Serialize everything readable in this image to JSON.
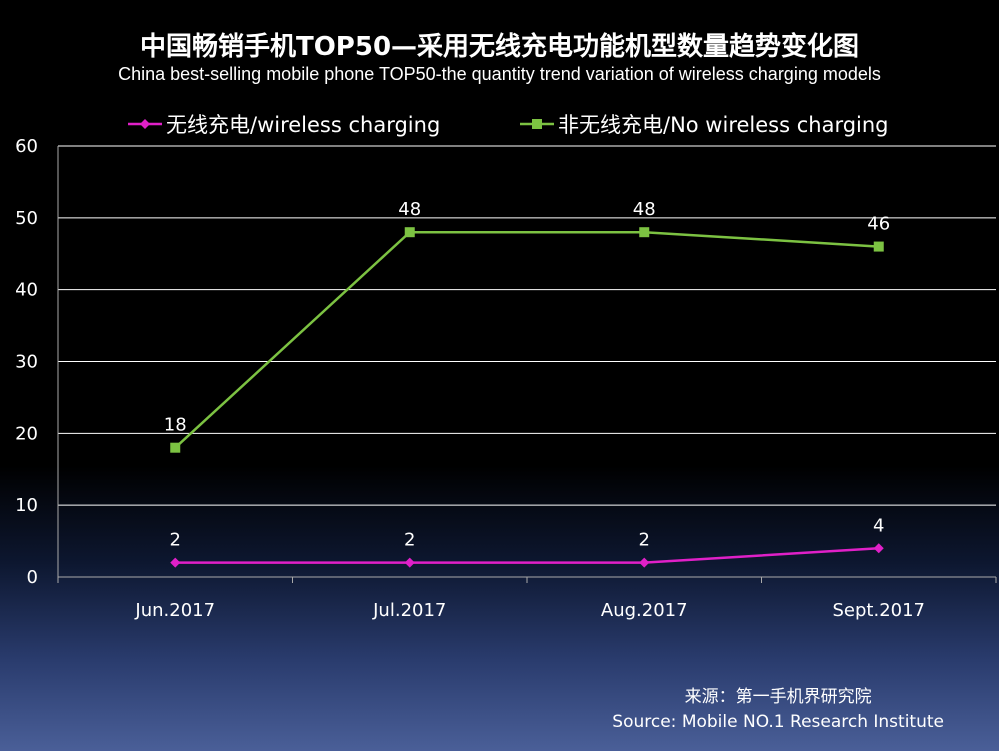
{
  "title": "中国畅销手机TOP50—采用无线充电功能机型数量趋势变化图",
  "subtitle": "China best-selling mobile phone TOP50-the quantity trend variation of wireless charging models",
  "source": {
    "line1": "来源：第一手机界研究院",
    "line2": "Source: Mobile NO.1 Research Institute"
  },
  "colors": {
    "background": "#000000",
    "grid": "#ffffff",
    "wireless": "#e020c8",
    "no_wireless": "#7cc242"
  },
  "chart_data": {
    "type": "line",
    "categories": [
      "Jun.2017",
      "Jul.2017",
      "Aug.2017",
      "Sept.2017"
    ],
    "series": [
      {
        "name": "无线充电/wireless charging",
        "key": "wireless",
        "marker": "diamond",
        "values": [
          2,
          2,
          2,
          4
        ],
        "labels": [
          "2",
          "2",
          "2",
          "4"
        ]
      },
      {
        "name": "非无线充电/No wireless charging",
        "key": "no_wireless",
        "marker": "square",
        "values": [
          18,
          48,
          48,
          46
        ],
        "labels": [
          "18",
          "48",
          "48",
          "46"
        ]
      }
    ],
    "ylim": [
      0,
      60
    ],
    "yticks": [
      "0",
      "10",
      "20",
      "30",
      "40",
      "50",
      "60"
    ],
    "grid": true,
    "legend_position": "top"
  }
}
